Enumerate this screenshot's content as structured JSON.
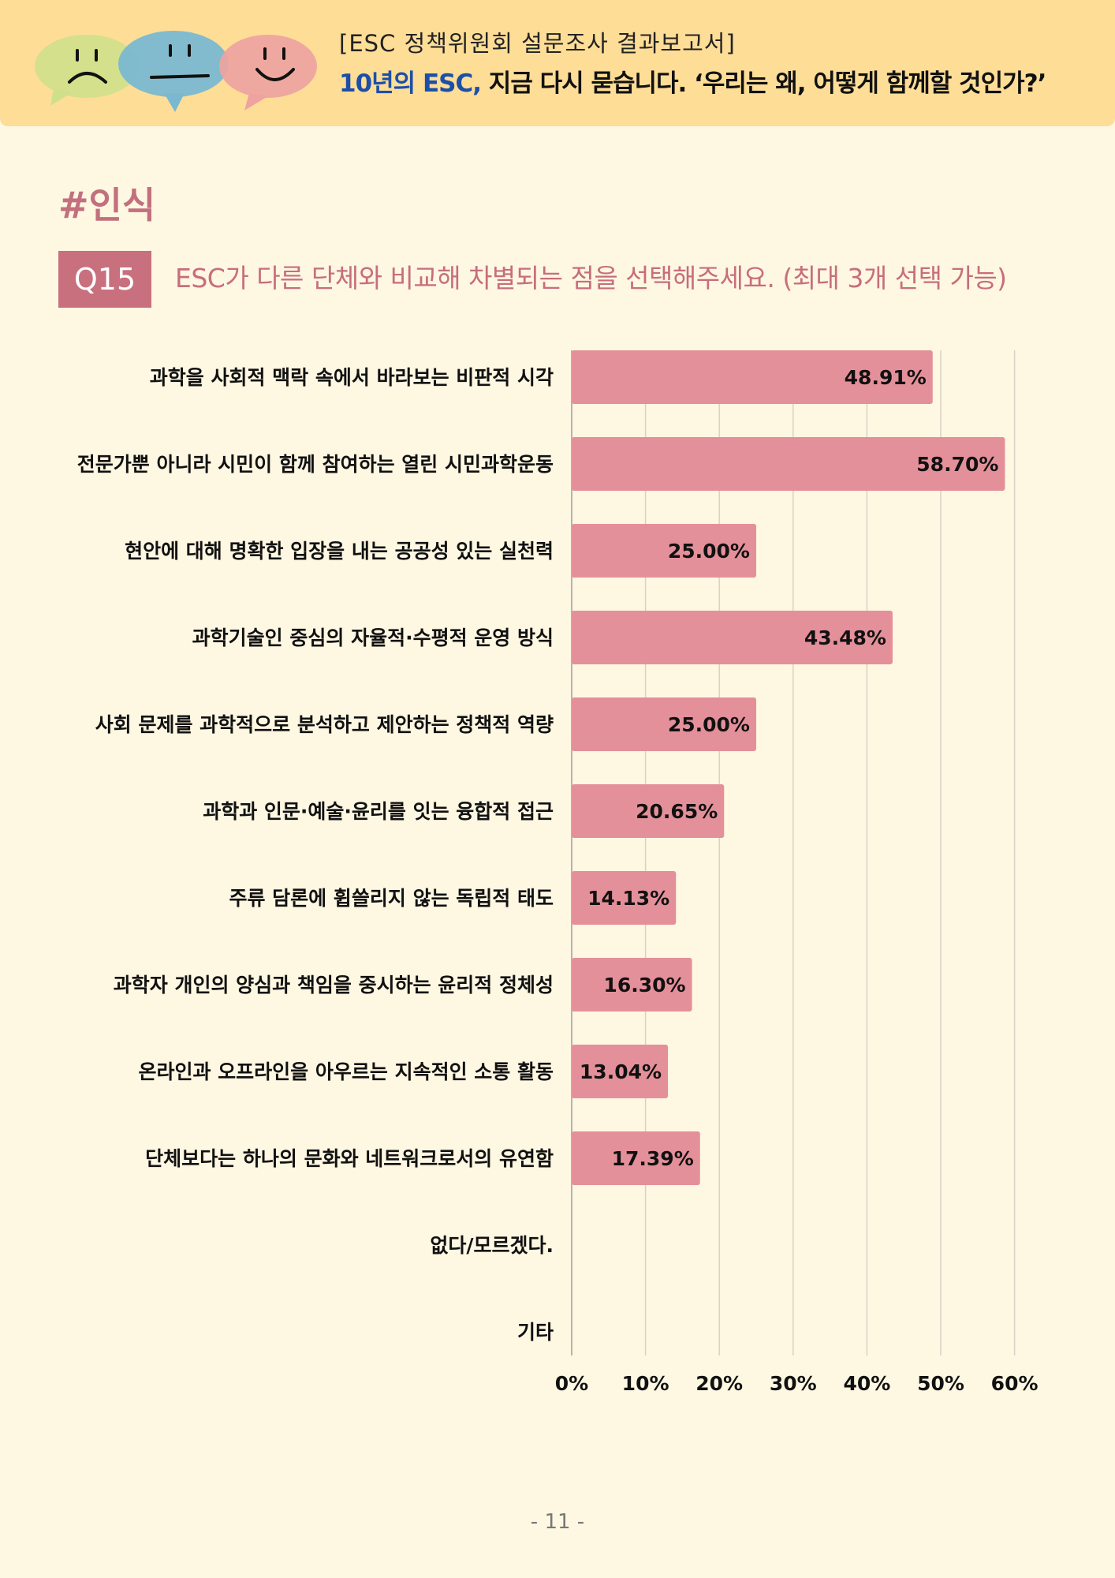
{
  "header": {
    "subtitle": "[ESC 정책위원회 설문조사 결과보고서]",
    "title_highlight": "10년의 ESC,",
    "title_rest": " 지금 다시 묻습니다. ‘우리는 왜, 어떻게 함께할 것인가?’"
  },
  "section_tag": "#인식",
  "question": {
    "badge": "Q15",
    "text": "ESC가 다른 단체와 비교해 차별되는 점을 선택해주세요. (최대 3개 선택 가능)"
  },
  "chart_data": {
    "type": "bar",
    "orientation": "horizontal",
    "categories": [
      "과학을 사회적 맥락 속에서 바라보는 비판적 시각",
      "전문가뿐 아니라 시민이 함께 참여하는 열린 시민과학운동",
      "현안에 대해 명확한 입장을 내는 공공성 있는 실천력",
      "과학기술인 중심의 자율적·수평적 운영 방식",
      "사회 문제를 과학적으로 분석하고 제안하는 정책적 역량",
      "과학과 인문·예술·윤리를 잇는 융합적 접근",
      "주류 담론에 휩쓸리지 않는 독립적 태도",
      "과학자 개인의 양심과 책임을 중시하는 윤리적 정체성",
      "온라인과 오프라인을 아우르는 지속적인 소통 활동",
      "단체보다는 하나의 문화와 네트워크로서의 유연함",
      "없다/모르겠다.",
      "기타"
    ],
    "values": [
      48.91,
      58.7,
      25.0,
      43.48,
      25.0,
      20.65,
      14.13,
      16.3,
      13.04,
      17.39,
      null,
      null
    ],
    "data_labels": [
      "48.91%",
      "58.70%",
      "25.00%",
      "43.48%",
      "25.00%",
      "20.65%",
      "14.13%",
      "16.30%",
      "13.04%",
      "17.39%",
      "",
      ""
    ],
    "x_ticks": [
      "0%",
      "10%",
      "20%",
      "30%",
      "40%",
      "50%",
      "60%"
    ],
    "xlim": [
      0,
      60
    ],
    "grid": true,
    "bar_color": "#e4909a",
    "title": "",
    "xlabel": "",
    "ylabel": ""
  },
  "page_number": "- 11 -"
}
